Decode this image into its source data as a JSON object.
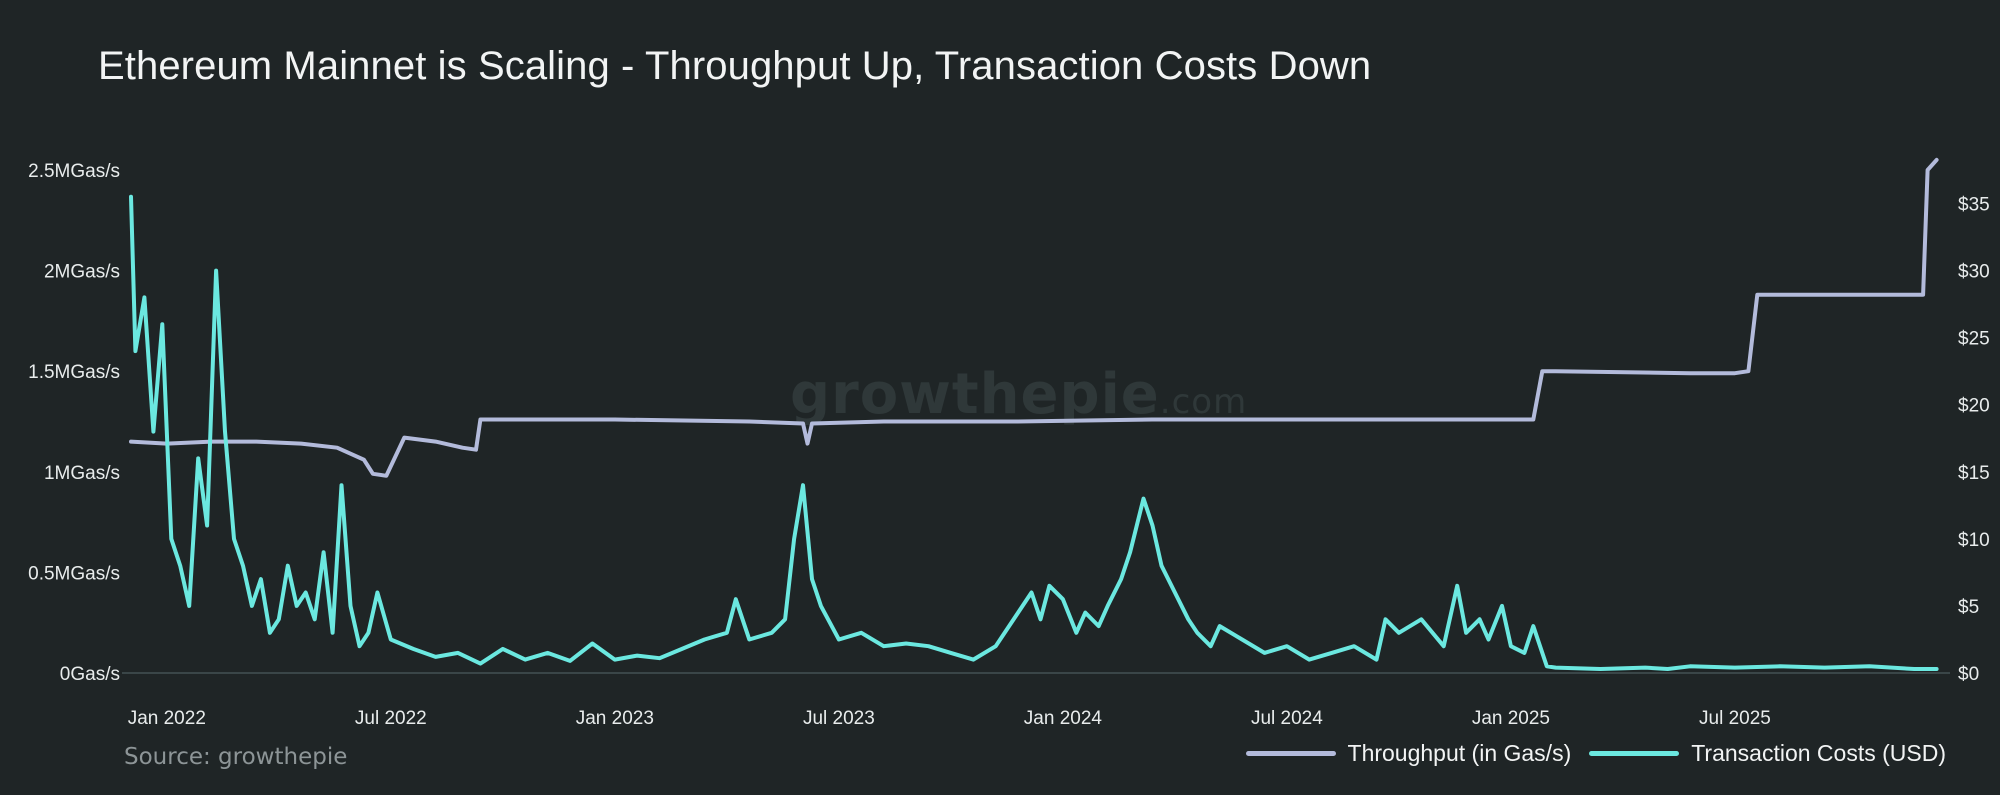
{
  "colors": {
    "background": "#1f2526",
    "throughput": "#b3bbdb",
    "costs": "#6be8e0",
    "baseline": "#3a4648"
  },
  "chart_data": {
    "type": "line",
    "title": "Ethereum Mainnet is Scaling - Throughput Up, Transaction Costs Down",
    "source": "Source: growthepie",
    "watermark": "growthepie",
    "watermark_suffix": ".com",
    "x_range": [
      "2021-11",
      "2025-12"
    ],
    "x_ticks": [
      "Jan 2022",
      "Jul 2022",
      "Jan 2023",
      "Jul 2023",
      "Jan 2024",
      "Jul 2024",
      "Jan 2025",
      "Jul 2025"
    ],
    "x_tick_dates": [
      2022.0,
      2022.5,
      2023.0,
      2023.5,
      2024.0,
      2024.5,
      2025.0,
      2025.5
    ],
    "y_left": {
      "label": "Throughput (in Gas/s)",
      "range": [
        0,
        2500000
      ],
      "ticks": [
        {
          "value": 0,
          "label": "0Gas/s"
        },
        {
          "value": 500000,
          "label": "0.5MGas/s"
        },
        {
          "value": 1000000,
          "label": "1MGas/s"
        },
        {
          "value": 1500000,
          "label": "1.5MGas/s"
        },
        {
          "value": 2000000,
          "label": "2MGas/s"
        },
        {
          "value": 2500000,
          "label": "2.5MGas/s"
        }
      ]
    },
    "y_right": {
      "label": "Transaction Costs (USD)",
      "range": [
        0,
        37.5
      ],
      "ticks": [
        {
          "value": 0,
          "label": "$0"
        },
        {
          "value": 5,
          "label": "$5"
        },
        {
          "value": 10,
          "label": "$10"
        },
        {
          "value": 15,
          "label": "$15"
        },
        {
          "value": 20,
          "label": "$20"
        },
        {
          "value": 25,
          "label": "$25"
        },
        {
          "value": 30,
          "label": "$30"
        },
        {
          "value": 35,
          "label": "$35"
        }
      ]
    },
    "legend": [
      {
        "name": "Throughput (in Gas/s)",
        "color": "#b3bbdb"
      },
      {
        "name": "Transaction Costs (USD)",
        "color": "#6be8e0"
      }
    ],
    "series": [
      {
        "name": "Throughput (in Gas/s)",
        "axis": "left",
        "x": [
          2021.92,
          2022.0,
          2022.1,
          2022.2,
          2022.3,
          2022.38,
          2022.44,
          2022.46,
          2022.49,
          2022.53,
          2022.6,
          2022.66,
          2022.69,
          2022.7,
          2023.0,
          2023.3,
          2023.42,
          2023.43,
          2023.44,
          2023.6,
          2023.9,
          2024.2,
          2024.5,
          2024.8,
          2025.05,
          2025.07,
          2025.1,
          2025.4,
          2025.5,
          2025.53,
          2025.55,
          2025.7,
          2025.92,
          2025.93,
          2025.95
        ],
        "values": [
          1150000,
          1140000,
          1150000,
          1150000,
          1140000,
          1120000,
          1060000,
          990000,
          980000,
          1170000,
          1150000,
          1120000,
          1110000,
          1260000,
          1260000,
          1250000,
          1240000,
          1140000,
          1240000,
          1250000,
          1250000,
          1260000,
          1260000,
          1260000,
          1260000,
          1500000,
          1500000,
          1490000,
          1490000,
          1500000,
          1880000,
          1880000,
          1880000,
          2500000,
          2550000
        ]
      },
      {
        "name": "Transaction Costs (USD)",
        "axis": "right",
        "x": [
          2021.92,
          2021.93,
          2021.95,
          2021.97,
          2021.99,
          2022.01,
          2022.03,
          2022.05,
          2022.07,
          2022.09,
          2022.11,
          2022.13,
          2022.15,
          2022.17,
          2022.19,
          2022.21,
          2022.23,
          2022.25,
          2022.27,
          2022.29,
          2022.31,
          2022.33,
          2022.35,
          2022.37,
          2022.39,
          2022.41,
          2022.43,
          2022.45,
          2022.47,
          2022.5,
          2022.55,
          2022.6,
          2022.65,
          2022.7,
          2022.75,
          2022.8,
          2022.85,
          2022.9,
          2022.95,
          2023.0,
          2023.05,
          2023.1,
          2023.15,
          2023.2,
          2023.25,
          2023.27,
          2023.3,
          2023.35,
          2023.38,
          2023.4,
          2023.42,
          2023.44,
          2023.46,
          2023.5,
          2023.55,
          2023.6,
          2023.65,
          2023.7,
          2023.75,
          2023.8,
          2023.85,
          2023.9,
          2023.93,
          2023.95,
          2023.97,
          2024.0,
          2024.03,
          2024.05,
          2024.08,
          2024.1,
          2024.13,
          2024.15,
          2024.18,
          2024.2,
          2024.22,
          2024.25,
          2024.28,
          2024.3,
          2024.33,
          2024.35,
          2024.4,
          2024.45,
          2024.5,
          2024.55,
          2024.6,
          2024.65,
          2024.7,
          2024.72,
          2024.75,
          2024.8,
          2024.85,
          2024.88,
          2024.9,
          2024.93,
          2024.95,
          2024.98,
          2025.0,
          2025.03,
          2025.05,
          2025.08,
          2025.1,
          2025.2,
          2025.3,
          2025.35,
          2025.4,
          2025.5,
          2025.6,
          2025.7,
          2025.8,
          2025.9,
          2025.95
        ],
        "values": [
          35.5,
          24,
          28,
          18,
          26,
          10,
          8,
          5,
          16,
          11,
          30,
          18,
          10,
          8,
          5,
          7,
          3,
          4,
          8,
          5,
          6,
          4,
          9,
          3,
          14,
          5,
          2,
          3,
          6,
          2.5,
          1.8,
          1.2,
          1.5,
          0.7,
          1.8,
          1.0,
          1.5,
          0.9,
          2.2,
          1.0,
          1.3,
          1.1,
          1.8,
          2.5,
          3.0,
          5.5,
          2.5,
          3.0,
          4.0,
          10.0,
          14.0,
          7.0,
          5.0,
          2.5,
          3.0,
          2.0,
          2.2,
          2.0,
          1.5,
          1.0,
          2.0,
          4.5,
          6.0,
          4.0,
          6.5,
          5.5,
          3.0,
          4.5,
          3.5,
          5.0,
          7.0,
          9.0,
          13.0,
          11.0,
          8.0,
          6.0,
          4.0,
          3.0,
          2.0,
          3.5,
          2.5,
          1.5,
          2.0,
          1.0,
          1.5,
          2.0,
          1.0,
          4.0,
          3.0,
          4.0,
          2.0,
          6.5,
          3.0,
          4.0,
          2.5,
          5.0,
          2.0,
          1.5,
          3.5,
          0.5,
          0.4,
          0.3,
          0.4,
          0.3,
          0.5,
          0.4,
          0.5,
          0.4,
          0.5,
          0.3,
          0.3
        ]
      }
    ]
  }
}
